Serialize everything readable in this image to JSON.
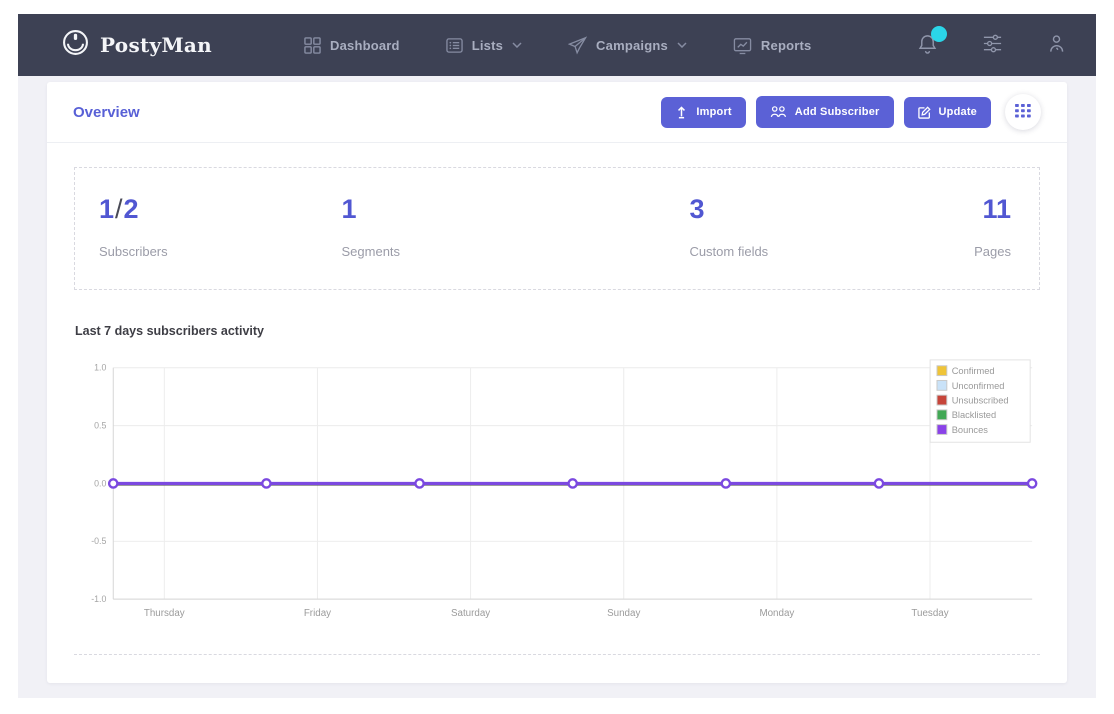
{
  "navbar": {
    "brand": "PostyMan",
    "items": [
      {
        "label": "Dashboard",
        "icon": "dashboard-grid-icon",
        "has_dropdown": false
      },
      {
        "label": "Lists",
        "icon": "list-icon",
        "has_dropdown": true
      },
      {
        "label": "Campaigns",
        "icon": "paper-plane-icon",
        "has_dropdown": true
      },
      {
        "label": "Reports",
        "icon": "report-chart-icon",
        "has_dropdown": false
      }
    ],
    "actions": [
      {
        "icon": "bell-icon",
        "has_notification": true
      },
      {
        "icon": "sliders-icon"
      },
      {
        "icon": "user-icon"
      }
    ],
    "notification_color": "#2bd5e8"
  },
  "header": {
    "title": "Overview",
    "buttons": [
      {
        "label": "Import",
        "icon": "upload-icon"
      },
      {
        "label": "Add Subscriber",
        "icon": "add-users-icon"
      },
      {
        "label": "Update",
        "icon": "edit-icon"
      }
    ],
    "grid_button_icon": "apps-grid-icon"
  },
  "stats": [
    {
      "value": "1",
      "divider": "/",
      "total": "2",
      "label": "Subscribers"
    },
    {
      "value": "1",
      "label": "Segments"
    },
    {
      "value": "3",
      "label": "Custom fields"
    },
    {
      "value": "11",
      "label": "Pages"
    }
  ],
  "chart_data": {
    "type": "line",
    "title": "Last 7 days subscribers activity",
    "x_tick_labels": [
      "Thursday",
      "Friday",
      "Saturday",
      "Sunday",
      "Monday",
      "Tuesday"
    ],
    "num_points": 7,
    "series": [
      {
        "name": "Confirmed",
        "color": "#efc438",
        "values": [
          0,
          0,
          0,
          0,
          0,
          0,
          0
        ]
      },
      {
        "name": "Unconfirmed",
        "color": "#c9e2f8",
        "values": [
          0,
          0,
          0,
          0,
          0,
          0,
          0
        ]
      },
      {
        "name": "Unsubscribed",
        "color": "#c7453a",
        "values": [
          0,
          0,
          0,
          0,
          0,
          0,
          0
        ]
      },
      {
        "name": "Blacklisted",
        "color": "#41a855",
        "values": [
          0,
          0,
          0,
          0,
          0,
          0,
          0
        ]
      },
      {
        "name": "Bounces",
        "color": "#8a42e8",
        "values": [
          0,
          0,
          0,
          0,
          0,
          0,
          0
        ]
      }
    ],
    "line_color": "#7b49e0",
    "ylim": [
      -1.0,
      1.0
    ],
    "yticks": [
      1.0,
      0.5,
      0.0,
      -0.5,
      -1.0
    ],
    "grid": true,
    "legend_position": "top-right"
  },
  "colors": {
    "accent": "#5b61d6",
    "navbar_bg": "#3d4154",
    "page_bg": "#f1f1f6"
  }
}
